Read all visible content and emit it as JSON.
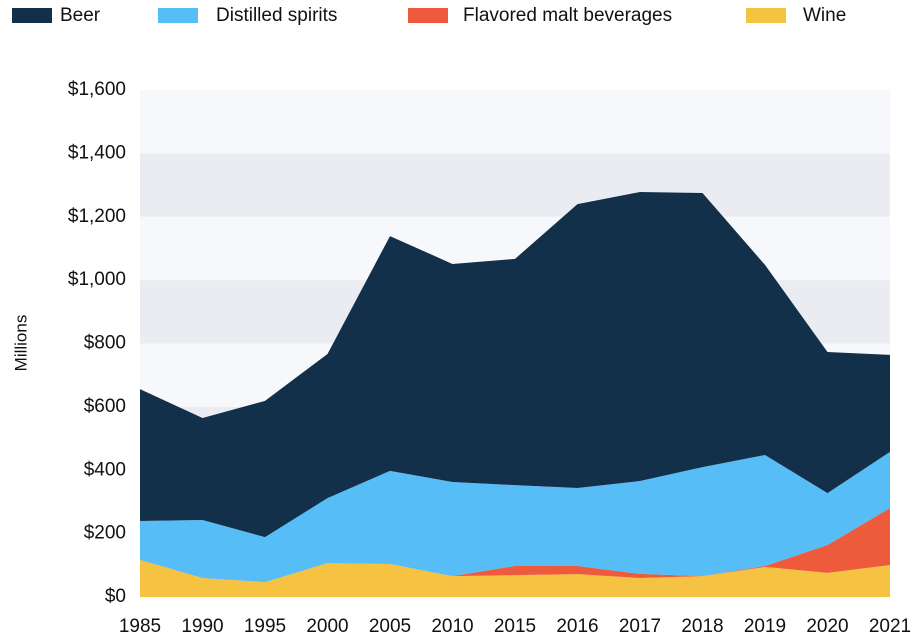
{
  "chart_data": {
    "type": "stacked_area",
    "y_label": "Millions",
    "categories": [
      "1985",
      "1990",
      "1995",
      "2000",
      "2005",
      "2010",
      "2015",
      "2016",
      "2017",
      "2018",
      "2019",
      "2020",
      "2021"
    ],
    "series": [
      {
        "name": "Beer",
        "color": "#13304a",
        "values": [
          416,
          322,
          430,
          455,
          741,
          688,
          714,
          896,
          912,
          865,
          600,
          445,
          306
        ]
      },
      {
        "name": "Distilled spirits",
        "color": "#57bdf7",
        "values": [
          123,
          183,
          142,
          205,
          294,
          297,
          255,
          246,
          293,
          344,
          350,
          164,
          177
        ]
      },
      {
        "name": "Flavored malt beverages",
        "color": "#ee5b3c",
        "values": [
          0,
          0,
          0,
          0,
          0,
          0,
          29,
          26,
          13,
          0,
          3,
          88,
          180
        ]
      },
      {
        "name": "Wine",
        "color": "#f5c242",
        "values": [
          117,
          60,
          47,
          107,
          104,
          66,
          69,
          72,
          60,
          66,
          95,
          76,
          101
        ]
      }
    ],
    "ylim": [
      0,
      1600
    ],
    "yticks": [
      {
        "value": 0,
        "label": "$0"
      },
      {
        "value": 200,
        "label": "$200"
      },
      {
        "value": 400,
        "label": "$400"
      },
      {
        "value": 600,
        "label": "$600"
      },
      {
        "value": 800,
        "label": "$800"
      },
      {
        "value": 1000,
        "label": "$1,000"
      },
      {
        "value": 1200,
        "label": "$1,200"
      },
      {
        "value": 1400,
        "label": "$1,400"
      },
      {
        "value": 1600,
        "label": "$1,600"
      }
    ],
    "grid": true
  }
}
